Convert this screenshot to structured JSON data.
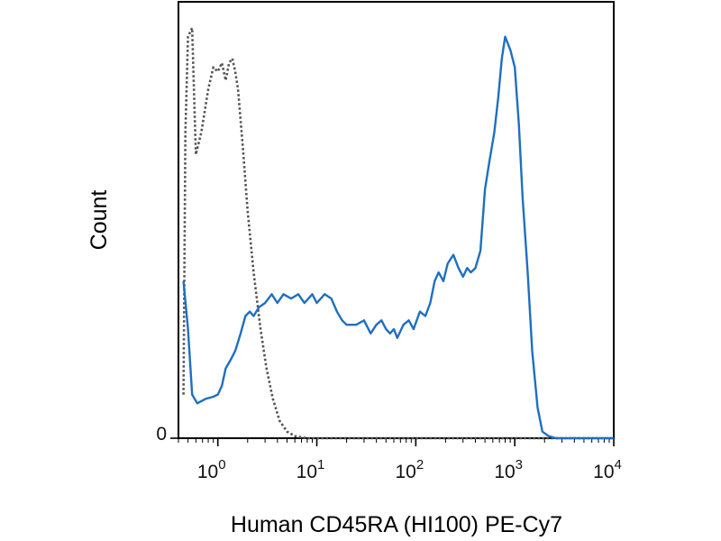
{
  "chart_data": {
    "type": "line",
    "xlabel": "Human CD45RA (HI100) PE-Cy7",
    "ylabel": "Count",
    "xscale": "log",
    "xlim": [
      0.4,
      10000
    ],
    "ylim": [
      0,
      100
    ],
    "x_ticks": [
      {
        "base": "10",
        "exp": "0",
        "value": 1
      },
      {
        "base": "10",
        "exp": "1",
        "value": 10
      },
      {
        "base": "10",
        "exp": "2",
        "value": 100
      },
      {
        "base": "10",
        "exp": "3",
        "value": 1000
      },
      {
        "base": "10",
        "exp": "4",
        "value": 10000
      }
    ],
    "y_ticks": [
      {
        "label": "0",
        "value": 0
      }
    ],
    "grid": false,
    "legend": "none",
    "series": [
      {
        "style": "dotted",
        "color": "#555555",
        "points": [
          [
            0.45,
            10
          ],
          [
            0.47,
            70
          ],
          [
            0.5,
            92
          ],
          [
            0.55,
            94
          ],
          [
            0.6,
            65
          ],
          [
            0.68,
            70
          ],
          [
            0.8,
            80
          ],
          [
            0.9,
            85
          ],
          [
            1.0,
            84
          ],
          [
            1.1,
            86
          ],
          [
            1.2,
            82
          ],
          [
            1.3,
            86
          ],
          [
            1.4,
            87
          ],
          [
            1.5,
            84
          ],
          [
            1.6,
            80
          ],
          [
            1.8,
            66
          ],
          [
            2.0,
            52
          ],
          [
            2.3,
            38
          ],
          [
            2.7,
            25
          ],
          [
            3.1,
            16
          ],
          [
            3.6,
            9
          ],
          [
            4.2,
            4
          ],
          [
            5,
            1.5
          ],
          [
            6,
            0.5
          ],
          [
            8,
            0
          ],
          [
            10000,
            0
          ]
        ]
      },
      {
        "style": "solid",
        "color": "#1f6fc0",
        "points": [
          [
            0.45,
            36
          ],
          [
            0.5,
            25
          ],
          [
            0.55,
            10
          ],
          [
            0.62,
            8
          ],
          [
            0.75,
            9
          ],
          [
            0.9,
            9.5
          ],
          [
            1.0,
            10
          ],
          [
            1.1,
            12
          ],
          [
            1.2,
            16
          ],
          [
            1.35,
            18
          ],
          [
            1.5,
            20
          ],
          [
            1.7,
            24
          ],
          [
            1.9,
            28
          ],
          [
            2.1,
            29
          ],
          [
            2.3,
            28
          ],
          [
            2.6,
            30
          ],
          [
            3.0,
            31
          ],
          [
            3.5,
            33
          ],
          [
            4.0,
            31
          ],
          [
            4.6,
            33
          ],
          [
            5.5,
            32
          ],
          [
            6.5,
            33
          ],
          [
            7.5,
            31
          ],
          [
            9,
            33
          ],
          [
            10,
            31
          ],
          [
            12,
            33
          ],
          [
            14,
            32
          ],
          [
            16,
            29
          ],
          [
            18,
            27
          ],
          [
            20,
            26
          ],
          [
            25,
            26
          ],
          [
            30,
            27
          ],
          [
            35,
            24
          ],
          [
            40,
            26
          ],
          [
            45,
            27
          ],
          [
            50,
            25
          ],
          [
            55,
            24
          ],
          [
            60,
            25
          ],
          [
            65,
            23
          ],
          [
            75,
            26
          ],
          [
            85,
            27
          ],
          [
            95,
            25
          ],
          [
            110,
            29
          ],
          [
            125,
            28
          ],
          [
            140,
            31
          ],
          [
            155,
            36
          ],
          [
            170,
            38
          ],
          [
            190,
            36
          ],
          [
            210,
            40
          ],
          [
            240,
            42
          ],
          [
            270,
            39
          ],
          [
            300,
            37
          ],
          [
            330,
            39
          ],
          [
            360,
            38
          ],
          [
            400,
            39
          ],
          [
            450,
            43
          ],
          [
            500,
            57
          ],
          [
            550,
            63
          ],
          [
            620,
            70
          ],
          [
            680,
            78
          ],
          [
            740,
            87
          ],
          [
            800,
            92
          ],
          [
            900,
            89
          ],
          [
            1000,
            85
          ],
          [
            1100,
            72
          ],
          [
            1200,
            55
          ],
          [
            1350,
            38
          ],
          [
            1500,
            20
          ],
          [
            1700,
            7
          ],
          [
            1900,
            1.5
          ],
          [
            2200,
            0.5
          ],
          [
            2600,
            0
          ],
          [
            10000,
            0
          ]
        ]
      }
    ]
  }
}
